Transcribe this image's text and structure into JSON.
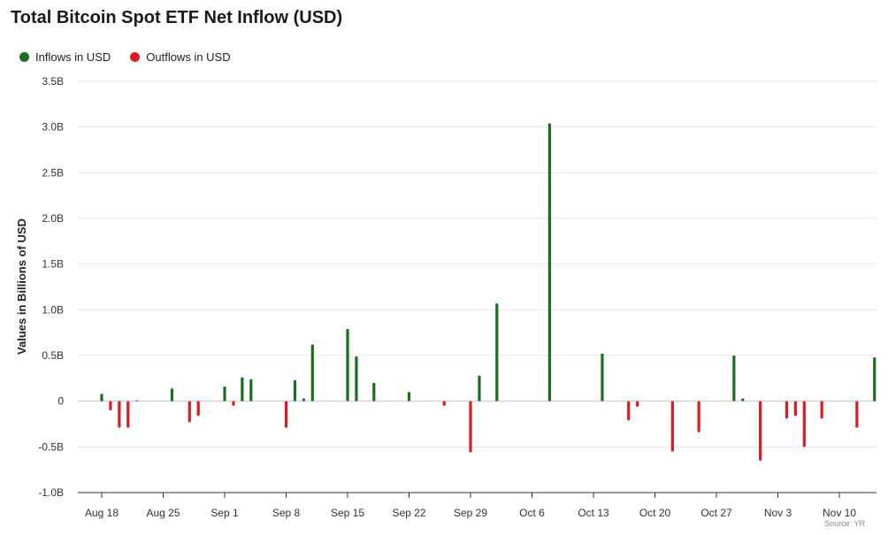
{
  "title": "Total Bitcoin Spot ETF Net Inflow (USD)",
  "legend": [
    {
      "label": "Inflows in USD",
      "color": "#1a6e1f"
    },
    {
      "label": "Outflows in USD",
      "color": "#d91d25"
    }
  ],
  "source": "Source: YR",
  "chart_data": {
    "type": "bar",
    "title": "Total Bitcoin Spot ETF Net Inflow (USD)",
    "xlabel": "",
    "ylabel": "Values in Billions of USD",
    "ylim": [
      -1.0,
      3.5
    ],
    "yticks": [
      -1.0,
      -0.5,
      0,
      0.5,
      1.0,
      1.5,
      2.0,
      2.5,
      3.0,
      3.5
    ],
    "ytick_labels": [
      "-1.0B",
      "-0.5B",
      "0",
      "0.5B",
      "1.0B",
      "1.5B",
      "2.0B",
      "2.5B",
      "3.0B",
      "3.5B"
    ],
    "xlim": [
      "2025-08-18",
      "2025-11-14"
    ],
    "xtick_labels": [
      "Aug 18",
      "Aug 25",
      "Sep 1",
      "Sep 8",
      "Sep 15",
      "Sep 22",
      "Sep 29",
      "Oct 6",
      "Oct 13",
      "Oct 20",
      "Oct 27",
      "Nov 3",
      "Nov 10"
    ],
    "xtick_dates": [
      "2025-08-18",
      "2025-08-25",
      "2025-09-01",
      "2025-09-08",
      "2025-09-15",
      "2025-09-22",
      "2025-09-29",
      "2025-10-06",
      "2025-10-13",
      "2025-10-20",
      "2025-10-27",
      "2025-11-03",
      "2025-11-10"
    ],
    "grid": true,
    "legend_position": "top-left",
    "series": [
      {
        "name": "Inflows in USD",
        "color": "#1a6e1f",
        "dates": [
          "2025-08-18",
          "2025-08-22",
          "2025-08-26",
          "2025-09-01",
          "2025-09-03",
          "2025-09-04",
          "2025-09-09",
          "2025-09-10",
          "2025-09-11",
          "2025-09-15",
          "2025-09-16",
          "2025-09-18",
          "2025-09-22",
          "2025-09-30",
          "2025-10-02",
          "2025-10-08",
          "2025-10-14",
          "2025-10-29",
          "2025-10-30",
          "2025-11-14"
        ],
        "values": [
          0.08,
          0.01,
          0.14,
          0.16,
          0.26,
          0.24,
          0.23,
          0.03,
          0.62,
          0.79,
          0.49,
          0.2,
          0.1,
          0.28,
          1.07,
          3.04,
          0.52,
          0.5,
          0.03,
          0.48
        ]
      },
      {
        "name": "Outflows in USD",
        "color": "#d91d25",
        "dates": [
          "2025-08-19",
          "2025-08-20",
          "2025-08-21",
          "2025-08-28",
          "2025-08-29",
          "2025-09-02",
          "2025-09-08",
          "2025-09-26",
          "2025-09-29",
          "2025-10-17",
          "2025-10-18",
          "2025-10-22",
          "2025-10-25",
          "2025-11-01",
          "2025-11-04",
          "2025-11-05",
          "2025-11-06",
          "2025-11-08",
          "2025-11-12"
        ],
        "values": [
          -0.1,
          -0.29,
          -0.29,
          -0.23,
          -0.16,
          -0.05,
          -0.29,
          -0.05,
          -0.56,
          -0.21,
          -0.06,
          -0.55,
          -0.34,
          -0.65,
          -0.19,
          -0.16,
          -0.5,
          -0.19,
          -0.29
        ]
      }
    ]
  }
}
